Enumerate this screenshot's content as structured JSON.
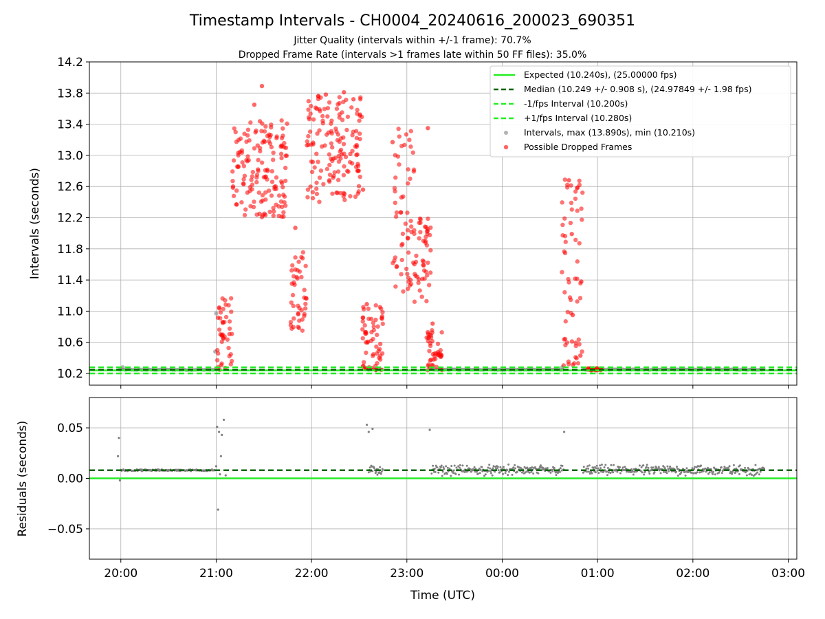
{
  "chart_data": {
    "type": "scatter",
    "title": "Timestamp Intervals - CH0004_20240616_200023_690351",
    "subtitles": [
      "Jitter Quality (intervals within +/-1 frame): 70.7%",
      "Dropped Frame Rate (intervals >1 frames late within 50 FF files): 35.0%"
    ],
    "colors": {
      "expected": "#22ee22",
      "median": "#006400",
      "interval_lines": "#22ee22",
      "intervals": "#808080",
      "dropped": "#ff0000",
      "grid": "#b0b0b0"
    },
    "x_axis": {
      "label": "Time (UTC)",
      "unit": "hours since 20:00 UTC (24:00 = 00:00 next day)",
      "range": [
        19.67,
        27.09
      ],
      "ticks": [
        {
          "value": 20,
          "label": "20:00"
        },
        {
          "value": 21,
          "label": "21:00"
        },
        {
          "value": 22,
          "label": "22:00"
        },
        {
          "value": 23,
          "label": "23:00"
        },
        {
          "value": 24,
          "label": "00:00"
        },
        {
          "value": 25,
          "label": "01:00"
        },
        {
          "value": 26,
          "label": "02:00"
        },
        {
          "value": 27,
          "label": "03:00"
        }
      ],
      "grid": true
    },
    "top_panel": {
      "ylabel": "Intervals (seconds)",
      "ylim": [
        10.05,
        14.2
      ],
      "yticks": [
        {
          "value": 10.2,
          "label": "10.2"
        },
        {
          "value": 10.6,
          "label": "10.6"
        },
        {
          "value": 11.0,
          "label": "11.0"
        },
        {
          "value": 11.4,
          "label": "11.4"
        },
        {
          "value": 11.8,
          "label": "11.8"
        },
        {
          "value": 12.2,
          "label": "12.2"
        },
        {
          "value": 12.6,
          "label": "12.6"
        },
        {
          "value": 13.0,
          "label": "13.0"
        },
        {
          "value": 13.4,
          "label": "13.4"
        },
        {
          "value": 13.8,
          "label": "13.8"
        },
        {
          "value": 14.2,
          "label": "14.2"
        }
      ],
      "grid": true,
      "legend_position": "top-right",
      "lines": [
        {
          "name": "Expected (10.240s), (25.00000 fps)",
          "y": 10.24,
          "style": "solid",
          "color": "#22ee22"
        },
        {
          "name": "Median (10.249 +/- 0.908 s), (24.97849 +/- 1.98 fps)",
          "y": 10.249,
          "style": "dashed",
          "color": "#006400"
        },
        {
          "name": "-1/fps Interval (10.200s)",
          "y": 10.2,
          "style": "dashed",
          "color": "#22ee22"
        },
        {
          "name": "+1/fps Interval (10.280s)",
          "y": 10.28,
          "style": "dashed",
          "color": "#22ee22"
        }
      ],
      "scatter_series": [
        {
          "name": "Intervals, max (13.890s), min (10.210s)",
          "color": "#808080",
          "segments": [
            {
              "x_start": 19.98,
              "x_end": 21.01,
              "y": 10.248
            },
            {
              "x_start": 22.6,
              "x_end": 22.75,
              "y": 10.25
            },
            {
              "x_start": 23.26,
              "x_end": 24.65,
              "y": 10.249
            },
            {
              "x_start": 24.85,
              "x_end": 26.75,
              "y": 10.25
            }
          ],
          "points": [
            [
              20.02,
              10.28
            ],
            [
              21.0,
              10.97
            ],
            [
              20.99,
              10.48
            ],
            [
              24.63,
              10.28
            ]
          ]
        },
        {
          "name": "Possible Dropped Frames",
          "color": "#ff0000",
          "clusters": [
            {
              "x_range": [
                21.01,
                21.17
              ],
              "y_range": [
                10.24,
                11.2
              ]
            },
            {
              "x_range": [
                21.17,
                21.75
              ],
              "y_range": [
                12.2,
                13.45
              ]
            },
            {
              "x_range": [
                21.78,
                21.95
              ],
              "y_range": [
                10.75,
                11.8
              ]
            },
            {
              "x_range": [
                21.95,
                22.53
              ],
              "y_range": [
                12.4,
                13.8
              ]
            },
            {
              "x_range": [
                22.53,
                22.76
              ],
              "y_range": [
                10.24,
                11.1
              ]
            },
            {
              "x_range": [
                22.85,
                23.08
              ],
              "y_range": [
                11.25,
                13.35
              ]
            },
            {
              "x_range": [
                23.08,
                23.25
              ],
              "y_range": [
                11.1,
                12.3
              ]
            },
            {
              "x_range": [
                23.2,
                23.37
              ],
              "y_range": [
                10.24,
                10.8
              ]
            },
            {
              "x_range": [
                24.62,
                24.85
              ],
              "y_range": [
                10.3,
                12.7
              ]
            },
            {
              "x_range": [
                24.88,
                25.04
              ],
              "y_range": [
                10.24,
                10.27
              ]
            }
          ],
          "points": [
            [
              21.48,
              13.89
            ],
            [
              22.15,
              13.78
            ],
            [
              22.34,
              13.81
            ],
            [
              22.44,
              13.72
            ],
            [
              22.54,
              12.56
            ],
            [
              22.85,
              13.17
            ],
            [
              23.22,
              13.35
            ],
            [
              23.27,
              10.84
            ],
            [
              22.58,
              11.09
            ],
            [
              22.57,
              10.73
            ],
            [
              21.83,
              12.07
            ],
            [
              21.4,
              13.65
            ],
            [
              24.7,
              12.68
            ],
            [
              24.73,
              11.99
            ],
            [
              24.83,
              11.38
            ],
            [
              24.74,
              10.95
            ],
            [
              24.82,
              10.43
            ],
            [
              21.07,
              10.85
            ]
          ]
        }
      ]
    },
    "bottom_panel": {
      "ylabel": "Residuals (seconds)",
      "ylim": [
        -0.08,
        0.08
      ],
      "yticks": [
        {
          "value": 0.05,
          "label": "0.05"
        },
        {
          "value": 0.0,
          "label": "0.00"
        },
        {
          "value": -0.05,
          "label": "−0.05"
        }
      ],
      "grid": true,
      "lines": [
        {
          "name": "Expected",
          "y": 0.0,
          "style": "solid",
          "color": "#22ee22"
        },
        {
          "name": "Median",
          "y": 0.008,
          "style": "dashed",
          "color": "#006400"
        }
      ],
      "residual_segments": [
        {
          "x_start": 20.0,
          "x_end": 20.99,
          "center": 0.008,
          "spread": 0.001
        },
        {
          "x_start": 22.6,
          "x_end": 22.75,
          "center": 0.008,
          "spread": 0.006
        },
        {
          "x_start": 23.26,
          "x_end": 24.65,
          "center": 0.008,
          "spread": 0.006
        },
        {
          "x_start": 24.85,
          "x_end": 26.75,
          "center": 0.008,
          "spread": 0.006
        }
      ],
      "residual_points": [
        [
          19.98,
          0.04
        ],
        [
          19.97,
          0.022
        ],
        [
          19.99,
          -0.002
        ],
        [
          21.01,
          0.051
        ],
        [
          21.03,
          0.046
        ],
        [
          21.08,
          0.058
        ],
        [
          21.06,
          0.043
        ],
        [
          21.05,
          0.022
        ],
        [
          21.02,
          -0.031
        ],
        [
          21.04,
          0.004
        ],
        [
          21.1,
          0.003
        ],
        [
          22.58,
          0.053
        ],
        [
          22.6,
          0.046
        ],
        [
          22.64,
          0.049
        ],
        [
          23.24,
          0.048
        ],
        [
          24.65,
          0.046
        ],
        [
          21.0,
          0.012
        ]
      ]
    }
  }
}
